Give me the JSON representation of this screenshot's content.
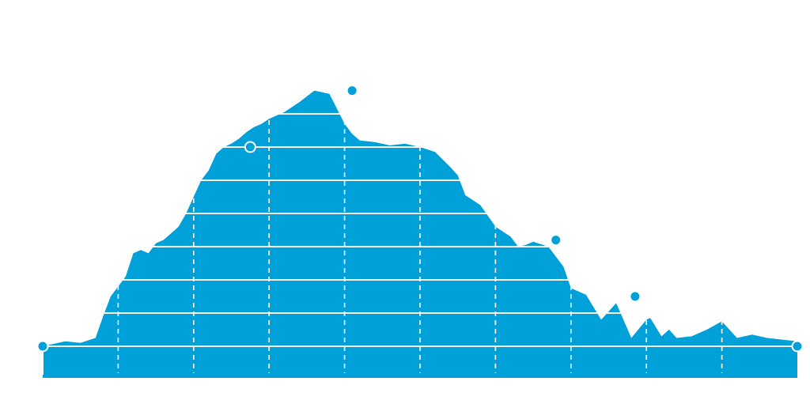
{
  "chart_data": {
    "type": "area",
    "title": "",
    "xlabel": "",
    "ylabel": "",
    "xlim": [
      0,
      10
    ],
    "ylim": [
      0,
      8
    ],
    "grid": {
      "horizontal_solid": true,
      "vertical_dashed": true
    },
    "colors": {
      "fill": "#00a0d9",
      "grid": "#ffffff",
      "marker_fill": "#00a0d9",
      "marker_stroke": "#ffffff"
    },
    "series": [
      {
        "x": [
          0,
          0.3,
          0.5,
          0.7,
          0.8,
          0.9,
          1.0,
          1.1,
          1.2,
          1.3,
          1.4,
          1.5,
          1.6,
          1.7,
          1.8,
          1.9,
          2.0,
          2.1,
          2.2,
          2.3,
          2.4,
          2.5,
          2.6,
          2.7,
          2.8,
          2.9,
          3.0,
          3.1,
          3.2,
          3.4,
          3.6,
          3.8,
          4.0,
          4.1,
          4.2,
          4.4,
          4.6,
          4.8,
          5.0,
          5.2,
          5.4,
          5.5,
          5.6,
          5.8,
          6.0,
          6.2,
          6.3,
          6.4,
          6.5,
          6.7,
          6.9,
          7.0,
          7.2,
          7.4,
          7.6,
          7.8,
          8.0,
          8.05,
          8.2,
          8.3,
          8.4,
          8.6,
          8.8,
          9.0,
          9.2,
          9.4,
          9.5,
          9.6,
          9.8,
          10.0
        ],
        "y": [
          0,
          0.15,
          0.1,
          0.25,
          0.9,
          1.5,
          1.8,
          2.1,
          2.8,
          2.9,
          2.8,
          3.1,
          3.2,
          3.4,
          3.6,
          4.0,
          4.5,
          5.0,
          5.3,
          5.8,
          6.0,
          6.1,
          6.25,
          6.45,
          6.6,
          6.7,
          6.85,
          6.95,
          7.05,
          7.35,
          7.7,
          7.6,
          6.7,
          6.4,
          6.2,
          6.15,
          6.05,
          6.1,
          6.0,
          5.85,
          5.4,
          5.15,
          4.55,
          4.25,
          3.6,
          3.3,
          3.0,
          3.05,
          3.15,
          3.0,
          2.4,
          1.75,
          1.55,
          0.8,
          1.3,
          0.25,
          0.8,
          0.85,
          0.3,
          0.5,
          0.25,
          0.3,
          0.5,
          0.75,
          0.25,
          0.35,
          0.3,
          0.25,
          0.2,
          0.15
        ]
      }
    ],
    "markers": [
      {
        "x": 0,
        "y": 0
      },
      {
        "x": 2.75,
        "y": 6.0
      },
      {
        "x": 4.1,
        "y": 7.7
      },
      {
        "x": 6.8,
        "y": 3.2
      },
      {
        "x": 7.85,
        "y": 1.5
      },
      {
        "x": 10,
        "y": 0
      }
    ]
  }
}
